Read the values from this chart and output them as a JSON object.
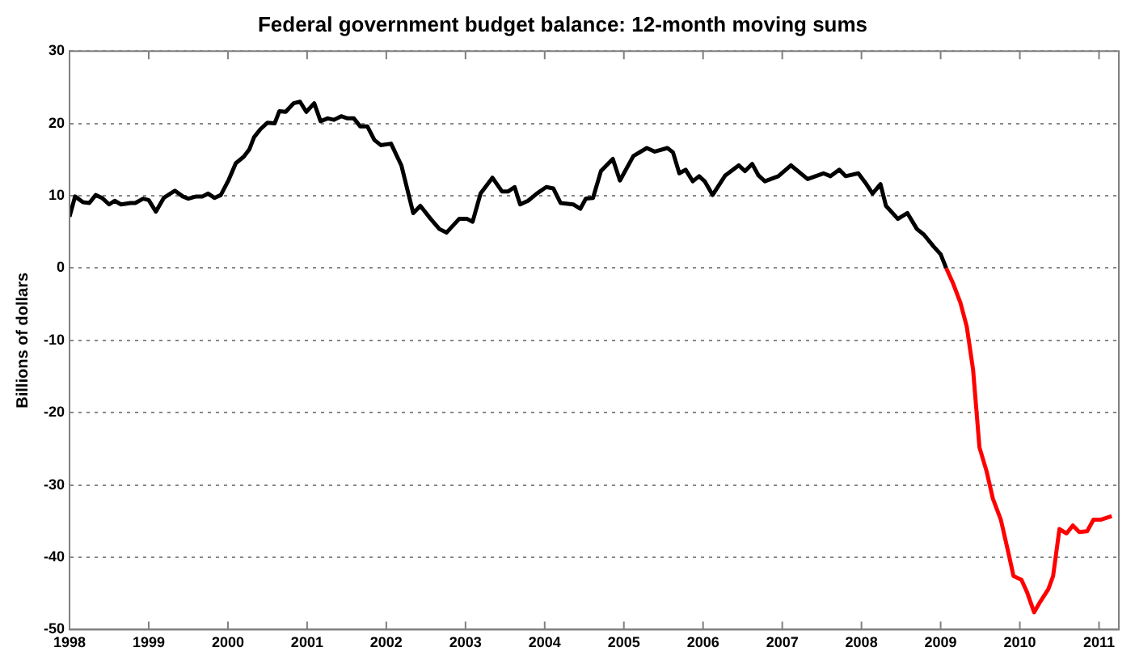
{
  "chart_data": {
    "type": "line",
    "title": "Federal government budget balance: 12-month moving sums",
    "ylabel": "Billions of dollars",
    "xlim": [
      1998,
      2011.25
    ],
    "xticks": [
      1998,
      1999,
      2000,
      2001,
      2002,
      2003,
      2004,
      2005,
      2006,
      2007,
      2008,
      2009,
      2010,
      2011
    ],
    "ylim": [
      -50,
      30
    ],
    "yticks": [
      -50,
      -40,
      -30,
      -20,
      -10,
      0,
      10,
      20,
      30
    ],
    "grid": "y",
    "legend": false,
    "marker": "none",
    "line_style": "solid",
    "series": [
      {
        "color": "#000000",
        "x": [
          1998.0,
          1998.07,
          1998.17,
          1998.25,
          1998.33,
          1998.41,
          1998.5,
          1998.57,
          1998.65,
          1998.77,
          1998.83,
          1998.93,
          1999.0,
          1999.09,
          1999.19,
          1999.33,
          1999.43,
          1999.5,
          1999.6,
          1999.68,
          1999.75,
          1999.83,
          1999.91,
          2000.01,
          2000.1,
          2000.2,
          2000.27,
          2000.33,
          2000.41,
          2000.5,
          2000.59,
          2000.65,
          2000.73,
          2000.83,
          2000.91,
          2000.99,
          2001.09,
          2001.17,
          2001.26,
          2001.34,
          2001.43,
          2001.51,
          2001.59,
          2001.67,
          2001.76,
          2001.85,
          2001.93,
          2002.06,
          2002.19,
          2002.34,
          2002.43,
          2002.56,
          2002.67,
          2002.76,
          2002.92,
          2003.02,
          2003.09,
          2003.19,
          2003.34,
          2003.46,
          2003.54,
          2003.62,
          2003.69,
          2003.79,
          2003.9,
          2004.02,
          2004.11,
          2004.2,
          2004.36,
          2004.45,
          2004.52,
          2004.61,
          2004.71,
          2004.86,
          2004.95,
          2005.12,
          2005.29,
          2005.39,
          2005.55,
          2005.62,
          2005.7,
          2005.78,
          2005.87,
          2005.95,
          2006.02,
          2006.12,
          2006.28,
          2006.45,
          2006.53,
          2006.62,
          2006.7,
          2006.78,
          2006.95,
          2007.11,
          2007.32,
          2007.52,
          2007.61,
          2007.72,
          2007.8,
          2007.96,
          2008.05,
          2008.14,
          2008.24,
          2008.31,
          2008.46,
          2008.58,
          2008.7,
          2008.79,
          2008.91,
          2009.0,
          2009.07
        ],
        "values": [
          7.1,
          9.9,
          9.1,
          9.0,
          10.1,
          9.7,
          8.8,
          9.3,
          8.8,
          9.0,
          9.0,
          9.6,
          9.4,
          7.8,
          9.7,
          10.7,
          9.9,
          9.6,
          9.9,
          9.9,
          10.3,
          9.7,
          10.1,
          12.2,
          14.5,
          15.4,
          16.4,
          18.1,
          19.2,
          20.1,
          20.0,
          21.7,
          21.6,
          22.8,
          23.0,
          21.6,
          22.8,
          20.3,
          20.7,
          20.5,
          21.0,
          20.7,
          20.7,
          19.6,
          19.6,
          17.7,
          17.0,
          17.2,
          14.2,
          7.6,
          8.6,
          6.8,
          5.4,
          4.9,
          6.8,
          6.8,
          6.4,
          10.3,
          12.5,
          10.6,
          10.6,
          11.2,
          8.8,
          9.3,
          10.3,
          11.2,
          11.0,
          9.0,
          8.8,
          8.2,
          9.6,
          9.7,
          13.4,
          15.1,
          12.1,
          15.5,
          16.6,
          16.1,
          16.6,
          16.0,
          13.1,
          13.6,
          12.0,
          12.7,
          12.0,
          10.1,
          12.8,
          14.2,
          13.4,
          14.4,
          12.8,
          12.0,
          12.7,
          14.2,
          12.3,
          13.1,
          12.7,
          13.6,
          12.7,
          13.1,
          11.8,
          10.3,
          11.6,
          8.6,
          6.8,
          7.6,
          5.4,
          4.6,
          3.0,
          1.9,
          0.0
        ]
      },
      {
        "color": "#ff0000",
        "x": [
          2009.07,
          2009.16,
          2009.25,
          2009.33,
          2009.41,
          2009.49,
          2009.58,
          2009.66,
          2009.76,
          2009.86,
          2009.92,
          2010.02,
          2010.09,
          2010.18,
          2010.26,
          2010.36,
          2010.42,
          2010.5,
          2010.59,
          2010.67,
          2010.75,
          2010.85,
          2010.93,
          2011.02,
          2011.16
        ],
        "values": [
          0.0,
          -2.2,
          -4.8,
          -8.1,
          -14.1,
          -24.8,
          -28.1,
          -31.9,
          -34.8,
          -39.6,
          -42.6,
          -43.1,
          -44.8,
          -47.6,
          -46.1,
          -44.4,
          -42.6,
          -36.1,
          -36.7,
          -35.6,
          -36.5,
          -36.4,
          -34.8,
          -34.8,
          -34.3
        ]
      }
    ]
  }
}
